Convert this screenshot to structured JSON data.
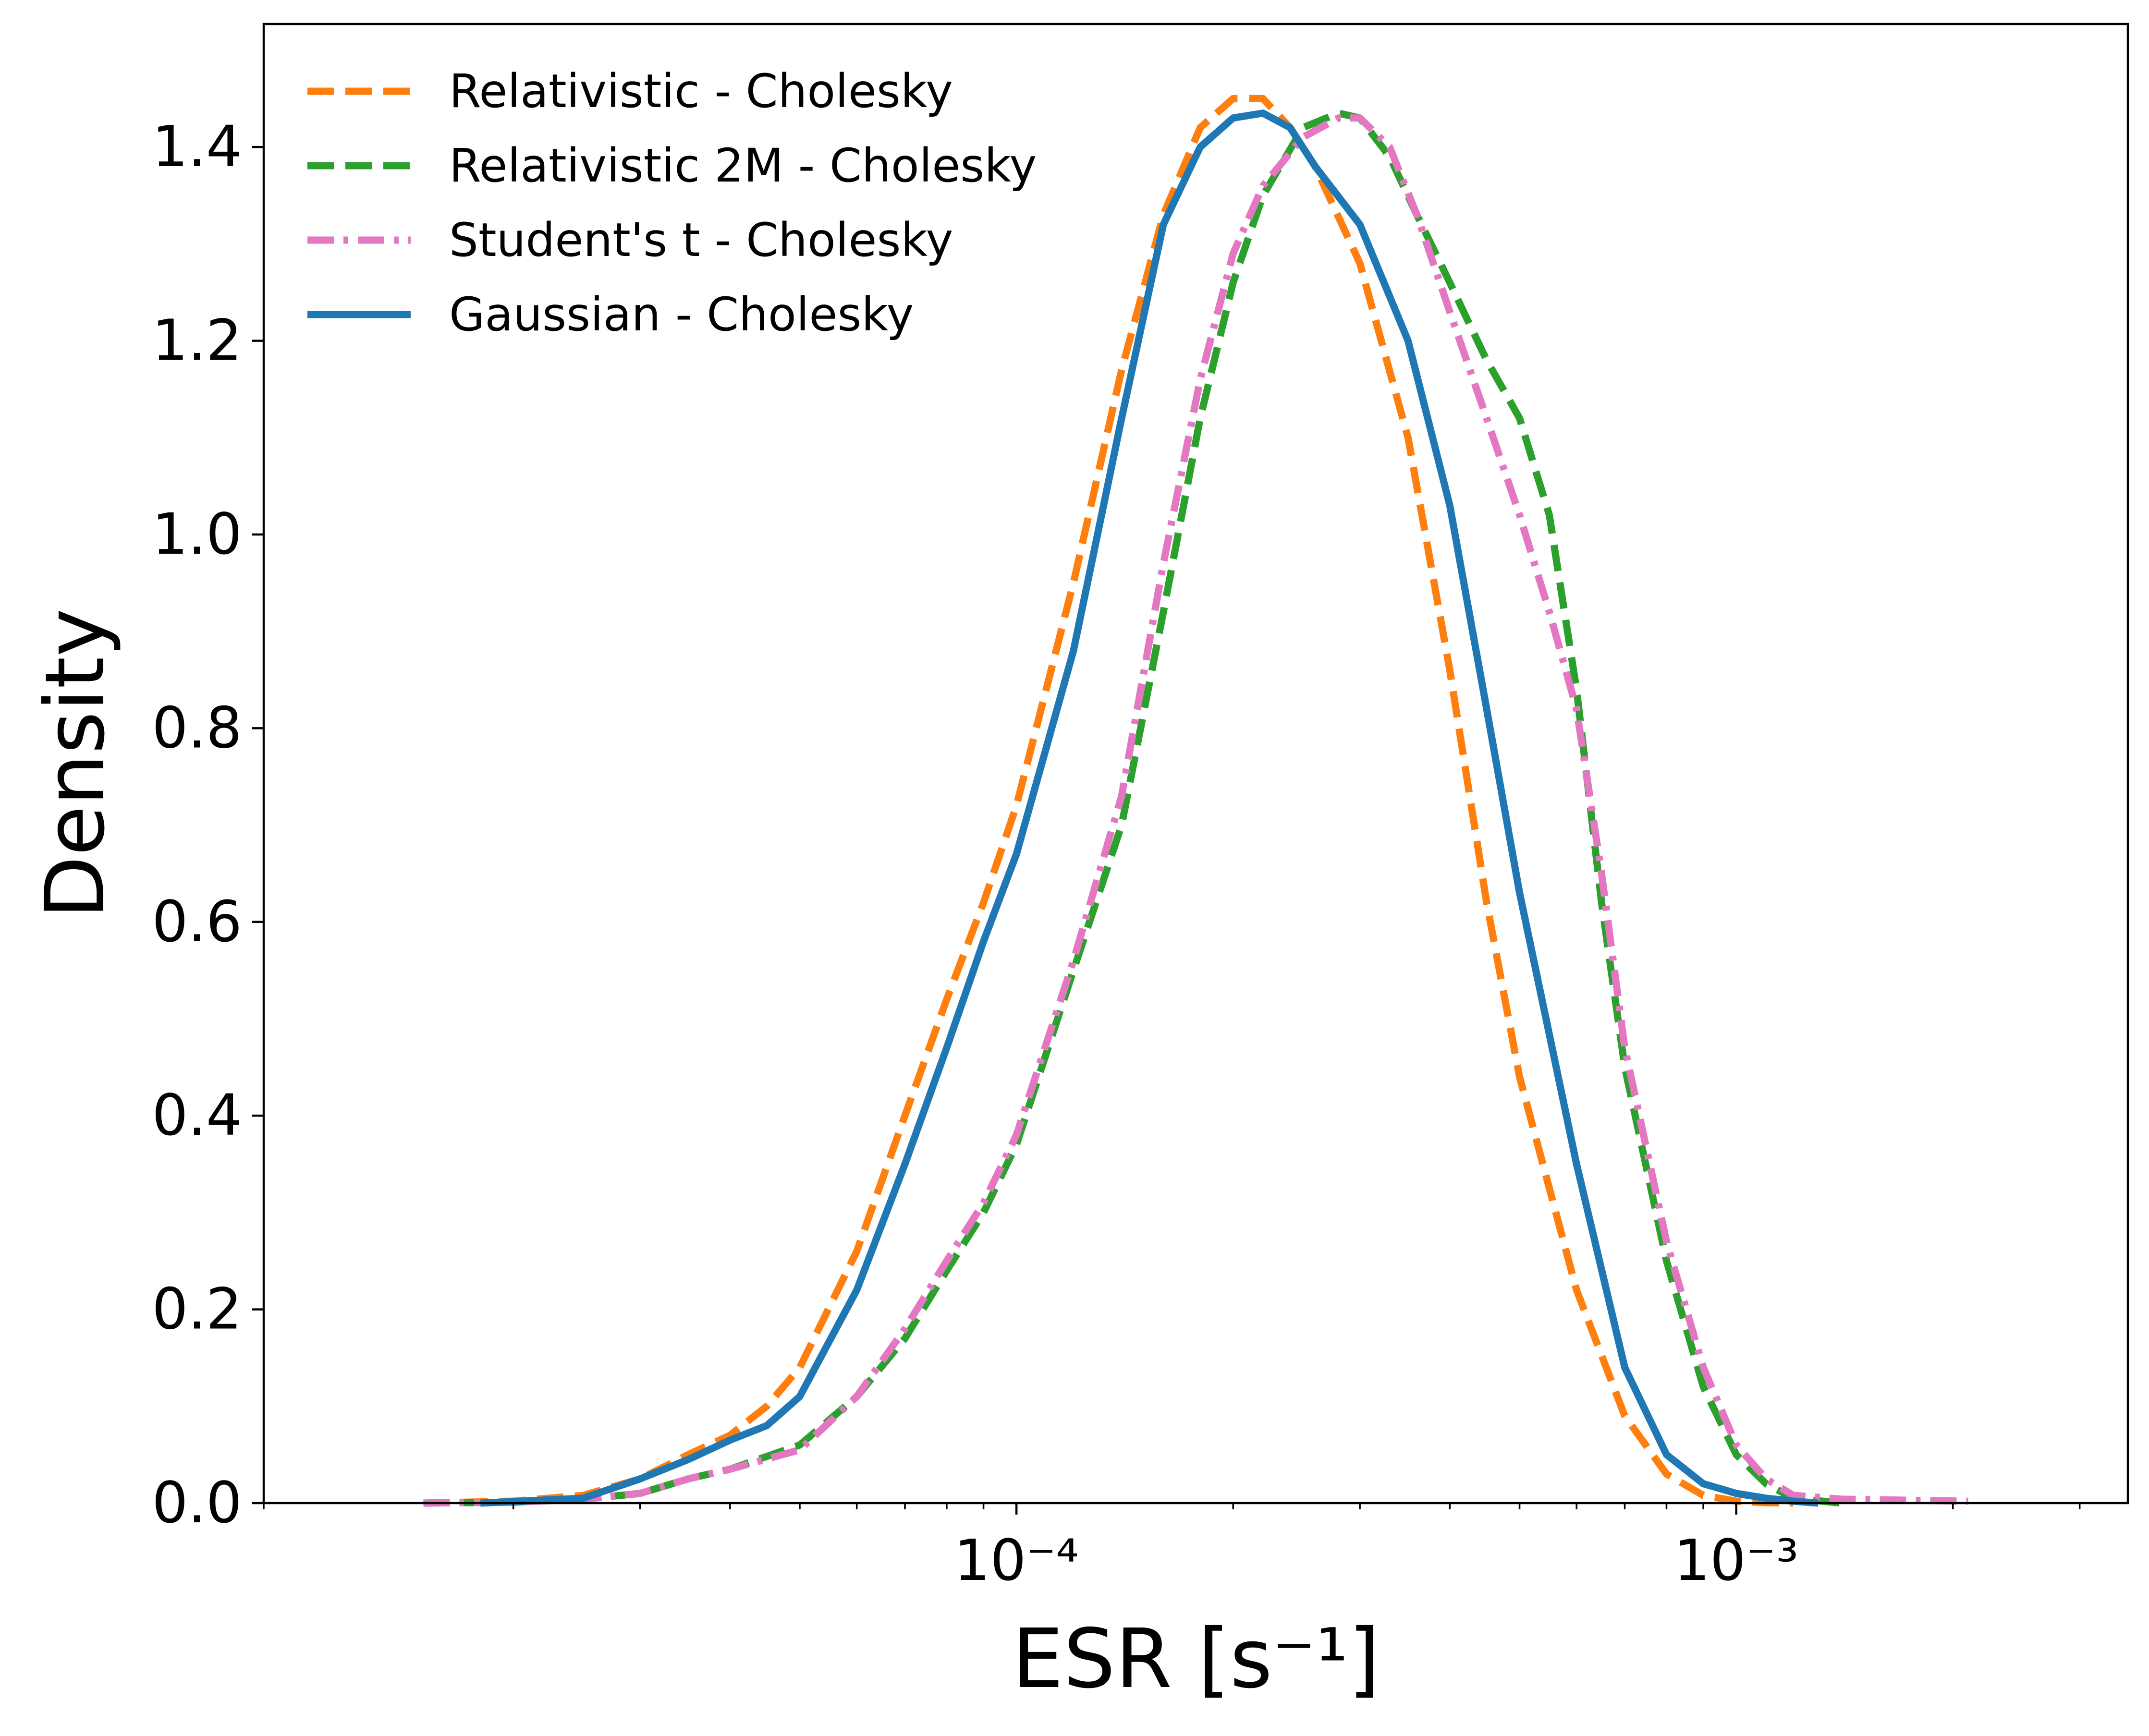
{
  "chart_data": {
    "type": "line",
    "title": "",
    "xlabel": "ESR [s⁻¹]",
    "ylabel": "Density",
    "xscale": "log",
    "xlim": [
      9e-06,
      0.0035
    ],
    "ylim": [
      0,
      1.527
    ],
    "grid": false,
    "legend_position": "top-left",
    "x_ticks": [
      {
        "value": 0.0001,
        "label": "10⁻⁴"
      },
      {
        "value": 0.001,
        "label": "10⁻³"
      }
    ],
    "y_ticks": [
      {
        "value": 0.0,
        "label": "0.0"
      },
      {
        "value": 0.2,
        "label": "0.2"
      },
      {
        "value": 0.4,
        "label": "0.4"
      },
      {
        "value": 0.6,
        "label": "0.6"
      },
      {
        "value": 0.8,
        "label": "0.8"
      },
      {
        "value": 1.0,
        "label": "1.0"
      },
      {
        "value": 1.2,
        "label": "1.2"
      },
      {
        "value": 1.4,
        "label": "1.4"
      }
    ],
    "series": [
      {
        "name": "Relativistic - Cholesky",
        "color": "#ff7f0e",
        "style": "dashed",
        "x": [
          1.5e-05,
          2e-05,
          2.5e-05,
          3e-05,
          3.5e-05,
          4e-05,
          4.5e-05,
          5e-05,
          6e-05,
          7e-05,
          8e-05,
          9e-05,
          0.0001,
          0.00012,
          0.00014,
          0.00016,
          0.00018,
          0.0002,
          0.00022,
          0.00024,
          0.00026,
          0.0003,
          0.00035,
          0.0004,
          0.00045,
          0.0005,
          0.0006,
          0.0007,
          0.0008,
          0.0009,
          0.001,
          0.0011,
          0.0012
        ],
        "y": [
          0.0,
          0.002,
          0.008,
          0.025,
          0.05,
          0.07,
          0.1,
          0.14,
          0.26,
          0.4,
          0.52,
          0.62,
          0.72,
          0.95,
          1.17,
          1.33,
          1.42,
          1.45,
          1.45,
          1.42,
          1.38,
          1.28,
          1.1,
          0.86,
          0.62,
          0.44,
          0.22,
          0.09,
          0.03,
          0.008,
          0.002,
          0.0005,
          0.0
        ]
      },
      {
        "name": "Relativistic 2M - Cholesky",
        "color": "#2ca02c",
        "style": "dashed",
        "x": [
          1.5e-05,
          2e-05,
          2.5e-05,
          3e-05,
          3.5e-05,
          4e-05,
          5e-05,
          6e-05,
          7e-05,
          8e-05,
          9e-05,
          0.0001,
          0.00012,
          0.00014,
          0.00016,
          0.00018,
          0.0002,
          0.00022,
          0.00025,
          0.00028,
          0.0003,
          0.00033,
          0.00036,
          0.0004,
          0.00045,
          0.0005,
          0.00055,
          0.0006,
          0.00065,
          0.0007,
          0.0008,
          0.0009,
          0.001,
          0.0011,
          0.0012,
          0.0014
        ],
        "y": [
          0.0,
          0.001,
          0.004,
          0.01,
          0.025,
          0.035,
          0.06,
          0.11,
          0.17,
          0.24,
          0.3,
          0.37,
          0.55,
          0.7,
          0.92,
          1.12,
          1.26,
          1.35,
          1.42,
          1.435,
          1.43,
          1.39,
          1.33,
          1.26,
          1.18,
          1.12,
          1.02,
          0.84,
          0.62,
          0.45,
          0.25,
          0.12,
          0.05,
          0.02,
          0.005,
          0.0
        ]
      },
      {
        "name": "Student's t - Cholesky",
        "color": "#e377c2",
        "style": "dashdot",
        "x": [
          1.5e-05,
          2e-05,
          2.5e-05,
          3e-05,
          3.5e-05,
          4e-05,
          5e-05,
          6e-05,
          7e-05,
          8e-05,
          9e-05,
          0.0001,
          0.00012,
          0.00014,
          0.00016,
          0.00018,
          0.0002,
          0.00022,
          0.00025,
          0.00028,
          0.0003,
          0.00033,
          0.00036,
          0.0004,
          0.00045,
          0.0005,
          0.00055,
          0.0006,
          0.00065,
          0.0007,
          0.0008,
          0.0009,
          0.001,
          0.0011,
          0.0012,
          0.0014,
          0.0017,
          0.0021
        ],
        "y": [
          0.0,
          0.001,
          0.004,
          0.01,
          0.025,
          0.035,
          0.055,
          0.11,
          0.18,
          0.25,
          0.31,
          0.38,
          0.56,
          0.73,
          0.97,
          1.16,
          1.29,
          1.36,
          1.41,
          1.43,
          1.43,
          1.4,
          1.33,
          1.23,
          1.12,
          1.02,
          0.92,
          0.82,
          0.65,
          0.47,
          0.27,
          0.14,
          0.06,
          0.025,
          0.008,
          0.004,
          0.003,
          0.002
        ]
      },
      {
        "name": "Gaussian - Cholesky",
        "color": "#1f77b4",
        "style": "solid",
        "x": [
          1.8e-05,
          2.5e-05,
          3e-05,
          3.5e-05,
          4e-05,
          4.5e-05,
          5e-05,
          6e-05,
          7e-05,
          8e-05,
          9e-05,
          0.0001,
          0.00012,
          0.00014,
          0.00016,
          0.00018,
          0.0002,
          0.00022,
          0.00024,
          0.00026,
          0.0003,
          0.00035,
          0.0004,
          0.00045,
          0.0005,
          0.0006,
          0.0007,
          0.0008,
          0.0009,
          0.001,
          0.0011,
          0.0012,
          0.0013
        ],
        "y": [
          0.0,
          0.005,
          0.025,
          0.045,
          0.065,
          0.08,
          0.11,
          0.22,
          0.35,
          0.47,
          0.58,
          0.67,
          0.88,
          1.12,
          1.32,
          1.4,
          1.43,
          1.435,
          1.42,
          1.38,
          1.32,
          1.2,
          1.03,
          0.82,
          0.63,
          0.35,
          0.14,
          0.05,
          0.02,
          0.01,
          0.005,
          0.002,
          0.0
        ]
      }
    ]
  }
}
